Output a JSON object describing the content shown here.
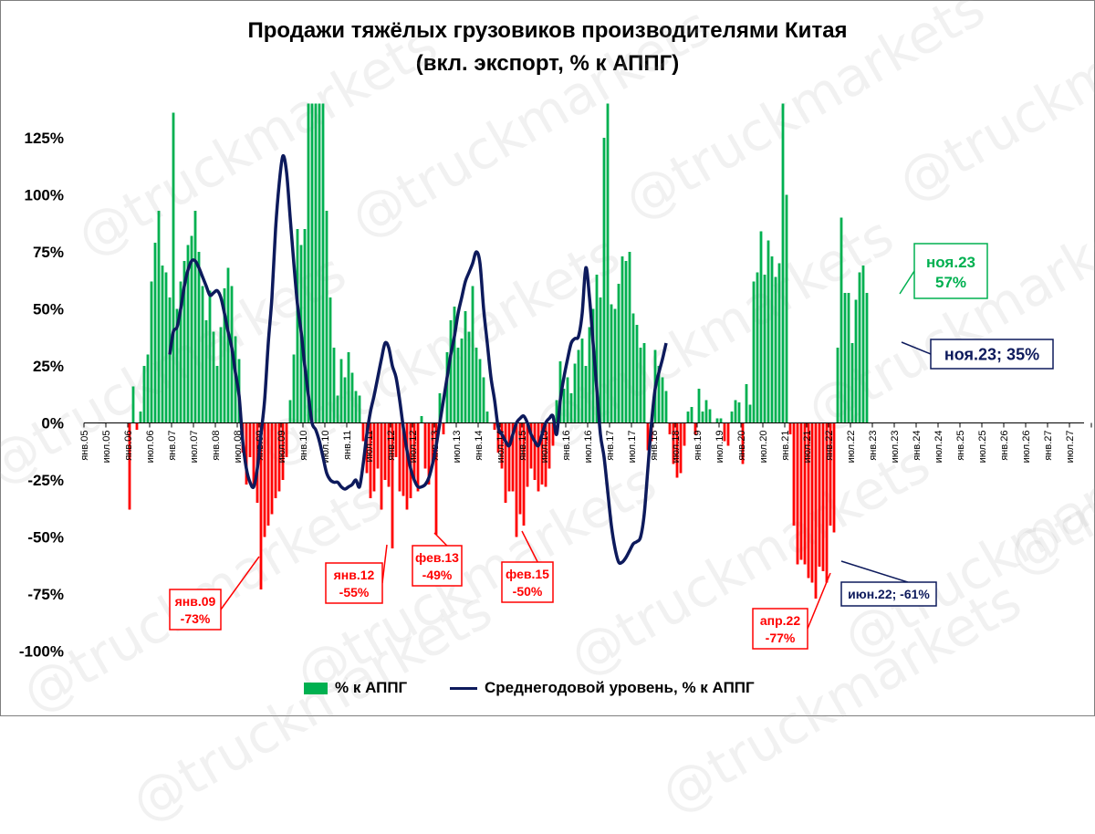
{
  "chart_data": {
    "type": "bar",
    "title": "Продажи тяжёлых грузовиков производителями Китая",
    "subtitle": "(вкл. экспорт, % к АППГ)",
    "watermark": "@truckmarkets",
    "ylim": [
      -100,
      140
    ],
    "yticks": [
      125,
      100,
      75,
      50,
      25,
      0,
      -25,
      -50,
      -75,
      -100
    ],
    "ytick_labels": [
      "125%",
      "100%",
      "75%",
      "50%",
      "25%",
      "0%",
      "-25%",
      "-50%",
      "-75%",
      "-100%"
    ],
    "xtick_labels": [
      "янв.05",
      "июл.05",
      "янв.06",
      "июл.06",
      "янв.07",
      "июл.07",
      "янв.08",
      "июл.08",
      "янв.09",
      "июл.09",
      "янв.10",
      "июл.10",
      "янв.11",
      "июл.11",
      "янв.12",
      "июл.12",
      "янв.13",
      "июл.13",
      "янв.14",
      "июл.14",
      "янв.15",
      "июл.15",
      "янв.16",
      "июл.16",
      "янв.17",
      "июл.17",
      "янв.18",
      "июл.18",
      "янв.19",
      "июл.19",
      "янв.20",
      "июл.20",
      "янв.21",
      "июл.21",
      "янв.22",
      "июл.22",
      "янв.23",
      "июл.23",
      "янв.24",
      "июл.24",
      "янв.25",
      "июл.25",
      "янв.26",
      "июл.26",
      "янв.27",
      "июл.27"
    ],
    "series": [
      {
        "name": "% к АППГ",
        "type": "bar",
        "color_positive": "#00b050",
        "color_negative": "#ff0000",
        "start": "янв.05",
        "values": [
          0,
          0,
          0,
          0,
          0,
          0,
          0,
          0,
          0,
          0,
          0,
          0,
          -38,
          16,
          -3,
          5,
          25,
          30,
          62,
          79,
          93,
          69,
          66,
          55,
          136,
          50,
          62,
          71,
          78,
          82,
          93,
          75,
          60,
          45,
          58,
          40,
          25,
          42,
          59,
          68,
          60,
          38,
          28,
          -13,
          -27,
          -15,
          -27,
          -35,
          -73,
          -50,
          -45,
          -40,
          -33,
          -30,
          -25,
          -15,
          10,
          30,
          85,
          78,
          85,
          140,
          140,
          140,
          140,
          140,
          93,
          55,
          33,
          12,
          28,
          20,
          31,
          22,
          14,
          12,
          -8,
          -22,
          -33,
          -30,
          -20,
          -38,
          -25,
          -28,
          -55,
          -15,
          -30,
          -32,
          -38,
          -33,
          -25,
          -30,
          3,
          -20,
          -27,
          -18,
          -49,
          13,
          -5,
          31,
          45,
          51,
          33,
          37,
          49,
          40,
          60,
          33,
          28,
          20,
          5,
          0,
          -3,
          -13,
          -20,
          -35,
          -30,
          -30,
          -50,
          -40,
          -45,
          -28,
          -20,
          -25,
          -30,
          -27,
          -28,
          -20,
          -10,
          10,
          27,
          15,
          20,
          13,
          26,
          32,
          37,
          25,
          42,
          50,
          65,
          55,
          125,
          140,
          52,
          50,
          61,
          73,
          71,
          75,
          48,
          43,
          33,
          35,
          -12,
          -8,
          32,
          25,
          20,
          14,
          -5,
          -18,
          -24,
          -22,
          -10,
          5,
          7,
          -5,
          15,
          5,
          10,
          6,
          0,
          2,
          2,
          -8,
          -10,
          5,
          10,
          9,
          -18,
          17,
          8,
          62,
          66,
          84,
          65,
          80,
          73,
          64,
          70,
          140,
          100,
          -5,
          -45,
          -62,
          -60,
          -62,
          -68,
          -70,
          -77,
          -63,
          -65,
          -70,
          -45,
          -48,
          33,
          90,
          57,
          57,
          35,
          54,
          66,
          69,
          57,
          0
        ]
      },
      {
        "name": "Среднегодовой уровень, % к АППГ",
        "type": "line",
        "color": "#0d1a5c",
        "start": "дек.06",
        "values": [
          30,
          40,
          42,
          50,
          60,
          67,
          71,
          71,
          68,
          64,
          60,
          56,
          57,
          58,
          55,
          48,
          40,
          33,
          22,
          12,
          -8,
          -20,
          -26,
          -28,
          -20,
          -5,
          10,
          35,
          55,
          85,
          105,
          117,
          110,
          90,
          70,
          52,
          40,
          25,
          12,
          0,
          -3,
          -8,
          -15,
          -22,
          -25,
          -26,
          -26,
          -28,
          -29,
          -28,
          -27,
          -25,
          -28,
          -18,
          -5,
          5,
          12,
          20,
          28,
          35,
          33,
          25,
          20,
          10,
          -2,
          -12,
          -20,
          -25,
          -28,
          -28,
          -27,
          -24,
          -18,
          -10,
          0,
          10,
          20,
          30,
          38,
          48,
          55,
          62,
          66,
          70,
          75,
          70,
          50,
          35,
          20,
          10,
          -2,
          -5,
          -8,
          -10,
          -5,
          0,
          2,
          3,
          0,
          -5,
          -8,
          -10,
          -5,
          0,
          2,
          3,
          -5,
          10,
          20,
          28,
          35,
          37,
          38,
          48,
          68,
          55,
          35,
          15,
          -5,
          -15,
          -30,
          -45,
          -55,
          -61,
          -61,
          -59,
          -56,
          -53,
          -52,
          -50,
          -40,
          -20,
          0,
          15,
          22,
          28,
          35
        ]
      }
    ],
    "annotations": [
      {
        "label": "янв.09",
        "value": "-73%",
        "color": "#ff0000"
      },
      {
        "label": "янв.12",
        "value": "-55%",
        "color": "#ff0000"
      },
      {
        "label": "фев.13",
        "value": "-49%",
        "color": "#ff0000"
      },
      {
        "label": "фев.15",
        "value": "-50%",
        "color": "#ff0000"
      },
      {
        "label": "апр.22",
        "value": "-77%",
        "color": "#ff0000"
      },
      {
        "label": "июн.22; -61%",
        "color": "#0d1a5c"
      },
      {
        "label": "ноя.23; 35%",
        "color": "#0d1a5c"
      },
      {
        "label": "ноя.23",
        "value": "57%",
        "color": "#00b050"
      }
    ]
  }
}
